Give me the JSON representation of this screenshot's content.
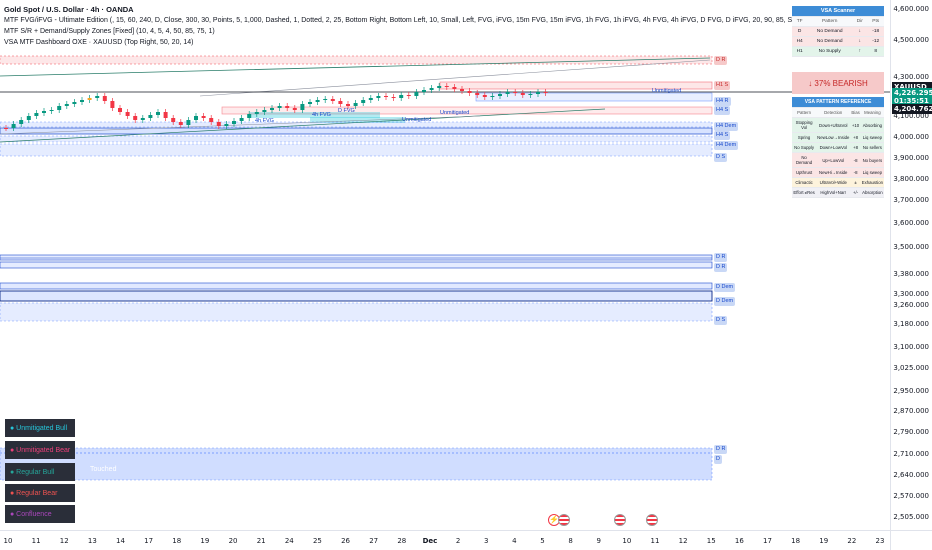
{
  "legend": {
    "title": "Gold Spot / U.S. Dollar · 4h · OANDA",
    "line1": "MTF FVG/iFVG - Ultimate Edition (, 15, 60, 240, D, Close, 300, 30, Points, 5, 1,000, Dashed, 1, Dotted, 2, 25, Bottom Right, Bottom Left, 10, Small, Left, FVG, iFVG, 15m FVG, 15m iFVG, 1h FVG, 1h iFVG, 4h FVG, 4h iFVG, D FVG, D iFVG, 20, 90, 85, Solid, 1)",
    "line2": "MTF S/R + Demand/Supply Zones [Fixed] (10, 4, 5, 4, 50, 85, 75, 1)",
    "line3": "VSA MTF Dashboard OXE · XAUUSD (Top Right, 50, 20, 14)"
  },
  "price_axis": {
    "labels": [
      "4,600.000",
      "4,500.000",
      "4,300.000",
      "4,100.000",
      "4,000.000",
      "3,900.000",
      "3,800.000",
      "3,700.000",
      "3,600.000",
      "3,500.000",
      "3,380.000",
      "3,300.000",
      "3,260.000",
      "3,180.000",
      "3,100.000",
      "3,025.000",
      "2,950.000",
      "2,870.000",
      "2,790.000",
      "2,710.000",
      "2,640.000",
      "2,570.000",
      "2,505.000"
    ],
    "symbol_tag": "XAUUSD",
    "last_price": "4,226.295",
    "countdown": "01:35:51",
    "low_price": "4,204.762"
  },
  "time_axis": {
    "labels": [
      "10",
      "11",
      "12",
      "13",
      "14",
      "17",
      "18",
      "19",
      "20",
      "21",
      "24",
      "25",
      "26",
      "27",
      "28",
      "Dec",
      "2",
      "3",
      "4",
      "5",
      "8",
      "9",
      "10",
      "11",
      "12",
      "15",
      "16",
      "17",
      "18",
      "19",
      "22",
      "23"
    ]
  },
  "zones": {
    "labels": [
      "4h FVG",
      "D FVG",
      "4h FVG",
      "Unmitigated",
      "Unmitigated",
      "Unmitigated",
      "Touched"
    ],
    "tags": [
      "D R",
      "H1 S",
      "H4 R",
      "H4 S",
      "H4 Dem",
      "H4 S",
      "H4 Dem",
      "D S",
      "D R",
      "D R",
      "D Dem",
      "D Dem",
      "D S",
      "D R",
      "D"
    ]
  },
  "vsa_scanner": {
    "title": "VSA Scanner",
    "columns": [
      "TF",
      "Pattern",
      "Dir",
      "Pts"
    ],
    "rows": [
      {
        "tf": "D",
        "pattern": "No Demand",
        "dir": "↓",
        "pts": "-18"
      },
      {
        "tf": "H4",
        "pattern": "No Demand",
        "dir": "↓",
        "pts": "-12"
      },
      {
        "tf": "H1",
        "pattern": "No Supply",
        "dir": "↑",
        "pts": "8"
      }
    ],
    "summary": "↓ 37% BEARISH"
  },
  "vsa_reference": {
    "title": "VSA PATTERN REFERENCE",
    "columns": [
      "Pattern",
      "Detection",
      "Bias",
      "Meaning"
    ],
    "rows": [
      [
        "Stopping Vol",
        "Down+UltraVol",
        "+10",
        "Absorbing"
      ],
      [
        "Spring",
        "NewLow→Inside",
        "+8",
        "Liq sweep"
      ],
      [
        "No Supply",
        "Down+LowVol",
        "+8",
        "No sellers"
      ],
      [
        "No Demand",
        "Up+LowVol",
        "-8",
        "No buyers"
      ],
      [
        "Upthrust",
        "NewHi→Inside",
        "-8",
        "Liq sweep"
      ],
      [
        "Climactic",
        "UltraVol+Wide",
        "±",
        "Exhaustion"
      ],
      [
        "Effort ≠Res",
        "HighVol+Narr",
        "+/-",
        "Absorption"
      ]
    ]
  },
  "fvg_legend": {
    "items": [
      {
        "label": "● Unmitigated Bull",
        "color": "#26c6da"
      },
      {
        "label": "● Unmitigated Bear",
        "color": "#ec407a"
      },
      {
        "label": "● Regular Bull",
        "color": "#26a69a"
      },
      {
        "label": "● Regular Bear",
        "color": "#ef5350"
      },
      {
        "label": "● Confluence",
        "color": "#ab47bc"
      }
    ]
  },
  "colors": {
    "bull": "#089981",
    "bear": "#f23645",
    "zone_blue": "#2962ff",
    "zone_red": "#f23645",
    "last_price": "#089981",
    "dashboard_header": "#3d8cd6"
  },
  "icons": [
    "flash-icon",
    "us-flag-icon",
    "us-flag-icon",
    "us-flag-icon"
  ]
}
